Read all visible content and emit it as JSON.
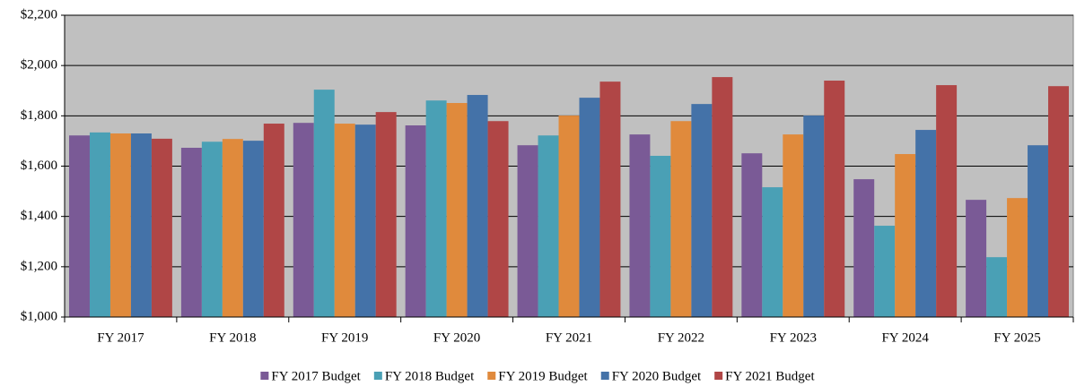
{
  "chart_data": {
    "type": "bar",
    "categories": [
      "FY 2017",
      "FY 2018",
      "FY 2019",
      "FY 2020",
      "FY 2021",
      "FY 2022",
      "FY 2023",
      "FY 2024",
      "FY 2025"
    ],
    "series": [
      {
        "name": "FY 2017 Budget",
        "color": "#7a5a96",
        "values": [
          1722,
          1673,
          1772,
          1762,
          1683,
          1726,
          1651,
          1548,
          1466
        ]
      },
      {
        "name": "FY 2018 Budget",
        "color": "#4aa0b5",
        "values": [
          1734,
          1697,
          1904,
          1861,
          1722,
          1641,
          1516,
          1363,
          1238
        ]
      },
      {
        "name": "FY 2019 Budget",
        "color": "#e08a3c",
        "values": [
          1730,
          1708,
          1769,
          1851,
          1801,
          1779,
          1726,
          1648,
          1473
        ]
      },
      {
        "name": "FY 2020 Budget",
        "color": "#4472a8",
        "values": [
          1730,
          1701,
          1765,
          1883,
          1872,
          1847,
          1801,
          1744,
          1683
        ]
      },
      {
        "name": "FY 2021 Budget",
        "color": "#b04646",
        "values": [
          1709,
          1769,
          1815,
          1779,
          1936,
          1954,
          1940,
          1922,
          1918
        ]
      }
    ],
    "ylim": [
      1000,
      2200
    ],
    "yticks": [
      {
        "value": 1000,
        "label": "$1,000"
      },
      {
        "value": 1200,
        "label": "$1,200"
      },
      {
        "value": 1400,
        "label": "$1,400"
      },
      {
        "value": 1600,
        "label": "$1,600"
      },
      {
        "value": 1800,
        "label": "$1,800"
      },
      {
        "value": 2000,
        "label": "$2,000"
      },
      {
        "value": 2200,
        "label": "$2,200"
      }
    ],
    "grid": true,
    "legend": "bottom",
    "plot_background": "#c0c0c0"
  }
}
